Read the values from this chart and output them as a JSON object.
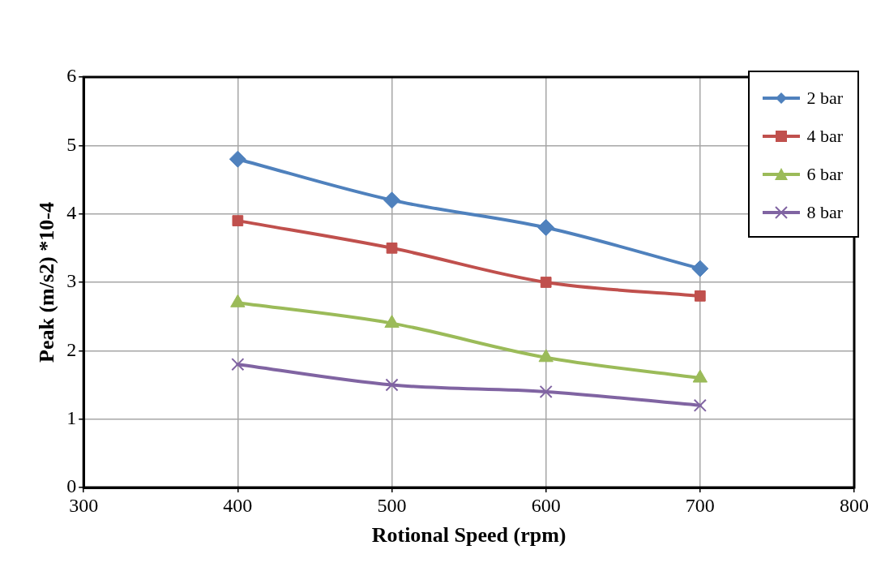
{
  "chart_data": {
    "type": "line",
    "xlabel": "Rotional Speed (rpm)",
    "ylabel": "Peak (m/s2) *10-4",
    "x": [
      400,
      500,
      600,
      700
    ],
    "series": [
      {
        "name": "2 bar",
        "color": "#4f81bd",
        "marker": "diamond",
        "values": [
          4.8,
          4.2,
          3.8,
          3.2
        ]
      },
      {
        "name": "4 bar",
        "color": "#c0504d",
        "marker": "square",
        "values": [
          3.9,
          3.5,
          3.0,
          2.8
        ]
      },
      {
        "name": "6 bar",
        "color": "#9bbb59",
        "marker": "triangle",
        "values": [
          2.7,
          2.4,
          1.9,
          1.6
        ]
      },
      {
        "name": "8 bar",
        "color": "#8064a2",
        "marker": "cross",
        "values": [
          1.8,
          1.5,
          1.4,
          1.2
        ]
      }
    ],
    "xlim": [
      300,
      800
    ],
    "xticks": [
      300,
      400,
      500,
      600,
      700,
      800
    ],
    "ylim": [
      0,
      6
    ],
    "yticks": [
      0,
      1,
      2,
      3,
      4,
      5,
      6
    ],
    "grid": true,
    "legend": "top right",
    "line_style": "solid"
  }
}
